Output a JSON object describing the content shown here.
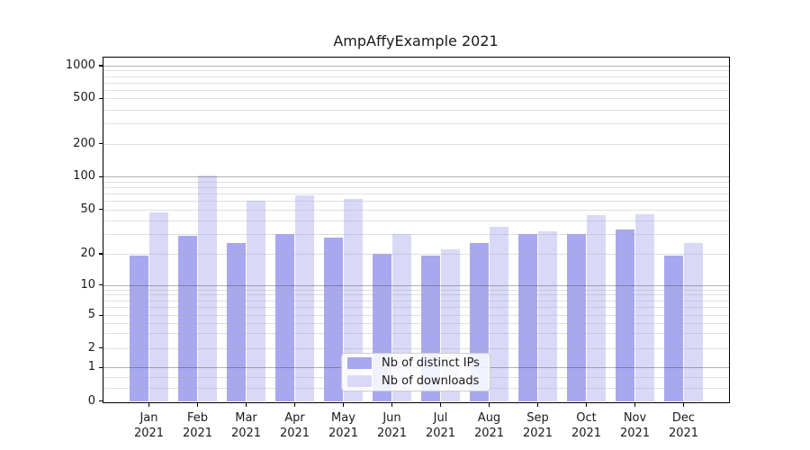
{
  "title": "AmpAffyExample 2021",
  "colors": {
    "distinct_ips": "#a8a8f0",
    "downloads": "#d9d9f7",
    "major_grid": "#b0b0b0",
    "minor_grid": "#e3e3e3",
    "spine": "#000000",
    "background": "#ffffff"
  },
  "legend": {
    "position": "lower center",
    "items": [
      {
        "label": "Nb of distinct IPs",
        "color_key": "distinct_ips"
      },
      {
        "label": "Nb of downloads",
        "color_key": "downloads"
      }
    ]
  },
  "chart_data": {
    "type": "bar",
    "title": "AmpAffyExample 2021",
    "categories": [
      "Jan 2021",
      "Feb 2021",
      "Mar 2021",
      "Apr 2021",
      "May 2021",
      "Jun 2021",
      "Jul 2021",
      "Aug 2021",
      "Sep 2021",
      "Oct 2021",
      "Nov 2021",
      "Dec 2021"
    ],
    "series": [
      {
        "name": "Nb of distinct IPs",
        "color": "#a8a8f0",
        "values": [
          19,
          29,
          25,
          30,
          28,
          20,
          19,
          25,
          30,
          30,
          33,
          19
        ]
      },
      {
        "name": "Nb of downloads",
        "color": "#d9d9f7",
        "values": [
          47,
          102,
          60,
          67,
          62,
          30,
          22,
          35,
          32,
          44,
          45,
          25
        ]
      }
    ],
    "xlabel": "",
    "ylabel": "",
    "yscale": "symlog",
    "y_ticks": [
      0,
      1,
      2,
      5,
      10,
      20,
      50,
      100,
      200,
      500,
      1000
    ],
    "ylim": [
      0,
      1400
    ],
    "grid": true,
    "legend_position": "lower center"
  }
}
